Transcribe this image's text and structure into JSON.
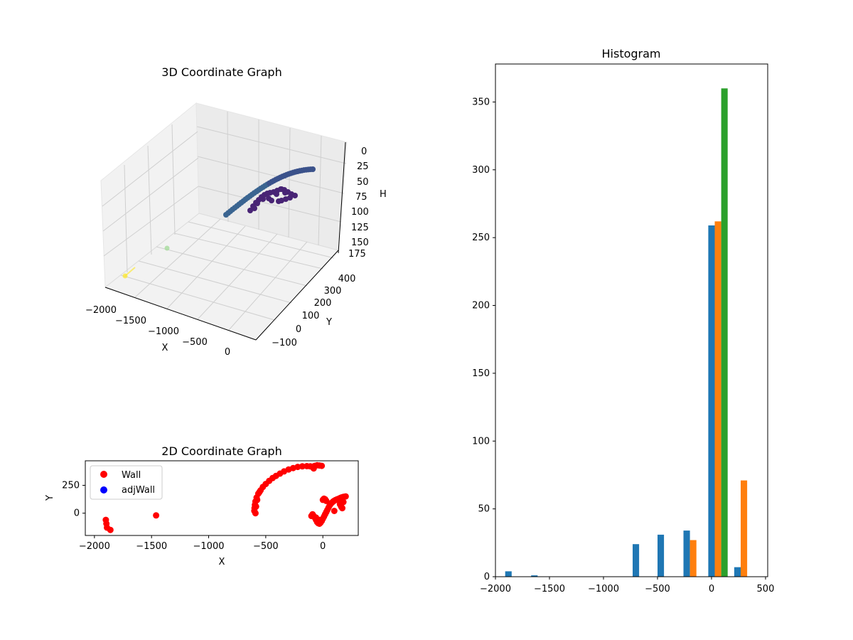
{
  "chart_data": [
    {
      "type": "scatter3d",
      "title": "3D Coordinate Graph",
      "xlabel": "X",
      "ylabel": "Y",
      "zlabel": "H",
      "x_ticks": [
        "−2000",
        "−1500",
        "−1000",
        "−500",
        "0"
      ],
      "y_ticks": [
        "−100",
        "0",
        "100",
        "200",
        "300",
        "400"
      ],
      "z_ticks": [
        "0",
        "25",
        "50",
        "75",
        "100",
        "125",
        "150",
        "175"
      ],
      "xlim": [
        -2000,
        250
      ],
      "ylim": [
        -150,
        450
      ],
      "zlim": [
        0,
        175
      ],
      "z_inverted": true,
      "grid": true
    },
    {
      "type": "scatter",
      "title": "2D Coordinate Graph",
      "xlabel": "X",
      "ylabel": "Y",
      "xlim": [
        -2080,
        310
      ],
      "ylim": [
        -200,
        470
      ],
      "x_ticks": [
        "−2000",
        "−1500",
        "−1000",
        "−500",
        "0"
      ],
      "y_ticks": [
        "0",
        "250"
      ],
      "legend_position": "top-left",
      "series": [
        {
          "name": "Wall",
          "color": "#ff0000",
          "points": [
            [
              -1900,
              -60
            ],
            [
              -1895,
              -95
            ],
            [
              -1890,
              -130
            ],
            [
              -1860,
              -150
            ],
            [
              -1460,
              -20
            ],
            [
              -600,
              20
            ],
            [
              -598,
              45
            ],
            [
              -595,
              75
            ],
            [
              -590,
              105
            ],
            [
              -580,
              140
            ],
            [
              -565,
              175
            ],
            [
              -545,
              205
            ],
            [
              -525,
              235
            ],
            [
              -500,
              262
            ],
            [
              -470,
              290
            ],
            [
              -440,
              315
            ],
            [
              -410,
              335
            ],
            [
              -375,
              355
            ],
            [
              -340,
              375
            ],
            [
              -300,
              392
            ],
            [
              -260,
              405
            ],
            [
              -220,
              415
            ],
            [
              -180,
              420
            ],
            [
              -140,
              422
            ],
            [
              -110,
              420
            ],
            [
              -85,
              418
            ],
            [
              -80,
              402
            ],
            [
              -70,
              425
            ],
            [
              -50,
              430
            ],
            [
              -30,
              428
            ],
            [
              -10,
              425
            ],
            [
              -590,
              0
            ],
            [
              -585,
              60
            ],
            [
              -575,
              120
            ],
            [
              -555,
              190
            ],
            [
              -90,
              -10
            ],
            [
              -80,
              -25
            ],
            [
              -70,
              -40
            ],
            [
              -60,
              -60
            ],
            [
              -50,
              -80
            ],
            [
              -40,
              -90
            ],
            [
              -30,
              -95
            ],
            [
              -20,
              -85
            ],
            [
              -10,
              -70
            ],
            [
              0,
              -50
            ],
            [
              10,
              -30
            ],
            [
              20,
              -10
            ],
            [
              30,
              10
            ],
            [
              40,
              30
            ],
            [
              50,
              50
            ],
            [
              60,
              70
            ],
            [
              70,
              85
            ],
            [
              80,
              95
            ],
            [
              90,
              105
            ],
            [
              100,
              112
            ],
            [
              110,
              118
            ],
            [
              120,
              122
            ],
            [
              130,
              126
            ],
            [
              140,
              130
            ],
            [
              150,
              135
            ],
            [
              160,
              140
            ],
            [
              170,
              143
            ],
            [
              180,
              146
            ],
            [
              190,
              148
            ],
            [
              200,
              150
            ],
            [
              0,
              120
            ],
            [
              10,
              130
            ],
            [
              20,
              125
            ],
            [
              30,
              110
            ],
            [
              100,
              20
            ],
            [
              150,
              80
            ],
            [
              160,
              60
            ],
            [
              170,
              45
            ],
            [
              180,
              100
            ],
            [
              -100,
              -25
            ],
            [
              -60,
              -40
            ],
            [
              -30,
              -60
            ]
          ]
        },
        {
          "name": "adjWall",
          "color": "#0000ff",
          "points": []
        }
      ]
    },
    {
      "type": "bar",
      "title": "Histogram",
      "xlim": [
        -2000,
        520
      ],
      "ylim": [
        0,
        378
      ],
      "x_ticks": [
        "−2000",
        "−1500",
        "−1000",
        "−500",
        "0",
        "500"
      ],
      "y_ticks": [
        "0",
        "50",
        "100",
        "150",
        "200",
        "250",
        "300",
        "350"
      ],
      "series": [
        {
          "color": "#1f77b4",
          "bars": [
            [
              -1880,
              4
            ],
            [
              -1640,
              1
            ],
            [
              -700,
              24
            ],
            [
              -470,
              31
            ],
            [
              -230,
              34
            ],
            [
              0,
              259
            ],
            [
              240,
              7
            ]
          ]
        },
        {
          "color": "#ff7f0e",
          "bars": [
            [
              -170,
              27
            ],
            [
              60,
              262
            ],
            [
              300,
              71
            ]
          ]
        },
        {
          "color": "#2ca02c",
          "bars": [
            [
              120,
              360
            ]
          ]
        }
      ],
      "bar_width": 60
    }
  ]
}
